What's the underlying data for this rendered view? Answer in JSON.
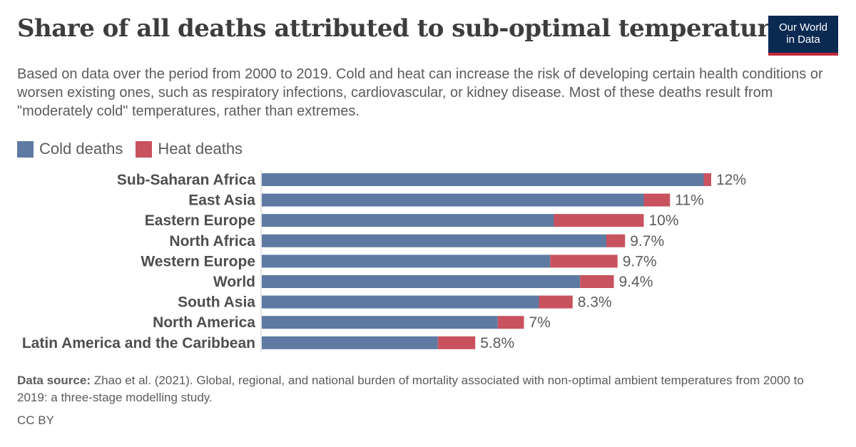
{
  "header": {
    "title": "Share of all deaths attributed to sub-optimal temperatures",
    "subtitle": "Based on data over the period from 2000 to 2019. Cold and heat can increase the risk of developing certain health conditions or worsen existing ones, such as respiratory infections, cardiovascular, or kidney disease. Most of these deaths result from \"moderately cold\" temperatures, rather than extremes.",
    "logo_line1": "Our World",
    "logo_line2": "in Data"
  },
  "legend": {
    "cold_label": "Cold deaths",
    "heat_label": "Heat deaths"
  },
  "colors": {
    "cold": "#5e7aa3",
    "heat": "#c9525f",
    "axis": "#cccccc"
  },
  "chart_data": {
    "type": "bar",
    "orientation": "horizontal",
    "stacked": true,
    "legend_position": "top-left",
    "categories": [
      "Sub-Saharan Africa",
      "East Asia",
      "Eastern Europe",
      "North Africa",
      "Western Europe",
      "World",
      "South Asia",
      "North America",
      "Latin America and the Caribbean"
    ],
    "series": [
      {
        "name": "Cold deaths",
        "values": [
          11.8,
          10.2,
          7.8,
          9.2,
          7.7,
          8.5,
          7.4,
          6.3,
          4.7
        ]
      },
      {
        "name": "Heat deaths",
        "values": [
          0.2,
          0.7,
          2.4,
          0.5,
          1.8,
          0.9,
          0.9,
          0.7,
          1.0
        ]
      }
    ],
    "totals": [
      "12%",
      "11%",
      "10%",
      "9.7%",
      "9.7%",
      "9.4%",
      "8.3%",
      "7%",
      "5.8%"
    ],
    "xlim": [
      0,
      12
    ],
    "grid": false
  },
  "footer": {
    "source_label": "Data source:",
    "source_text": "Zhao et al. (2021). Global, regional, and national burden of mortality associated with non-optimal ambient temperatures from 2000 to 2019: a three-stage modelling study.",
    "license": "CC BY"
  }
}
